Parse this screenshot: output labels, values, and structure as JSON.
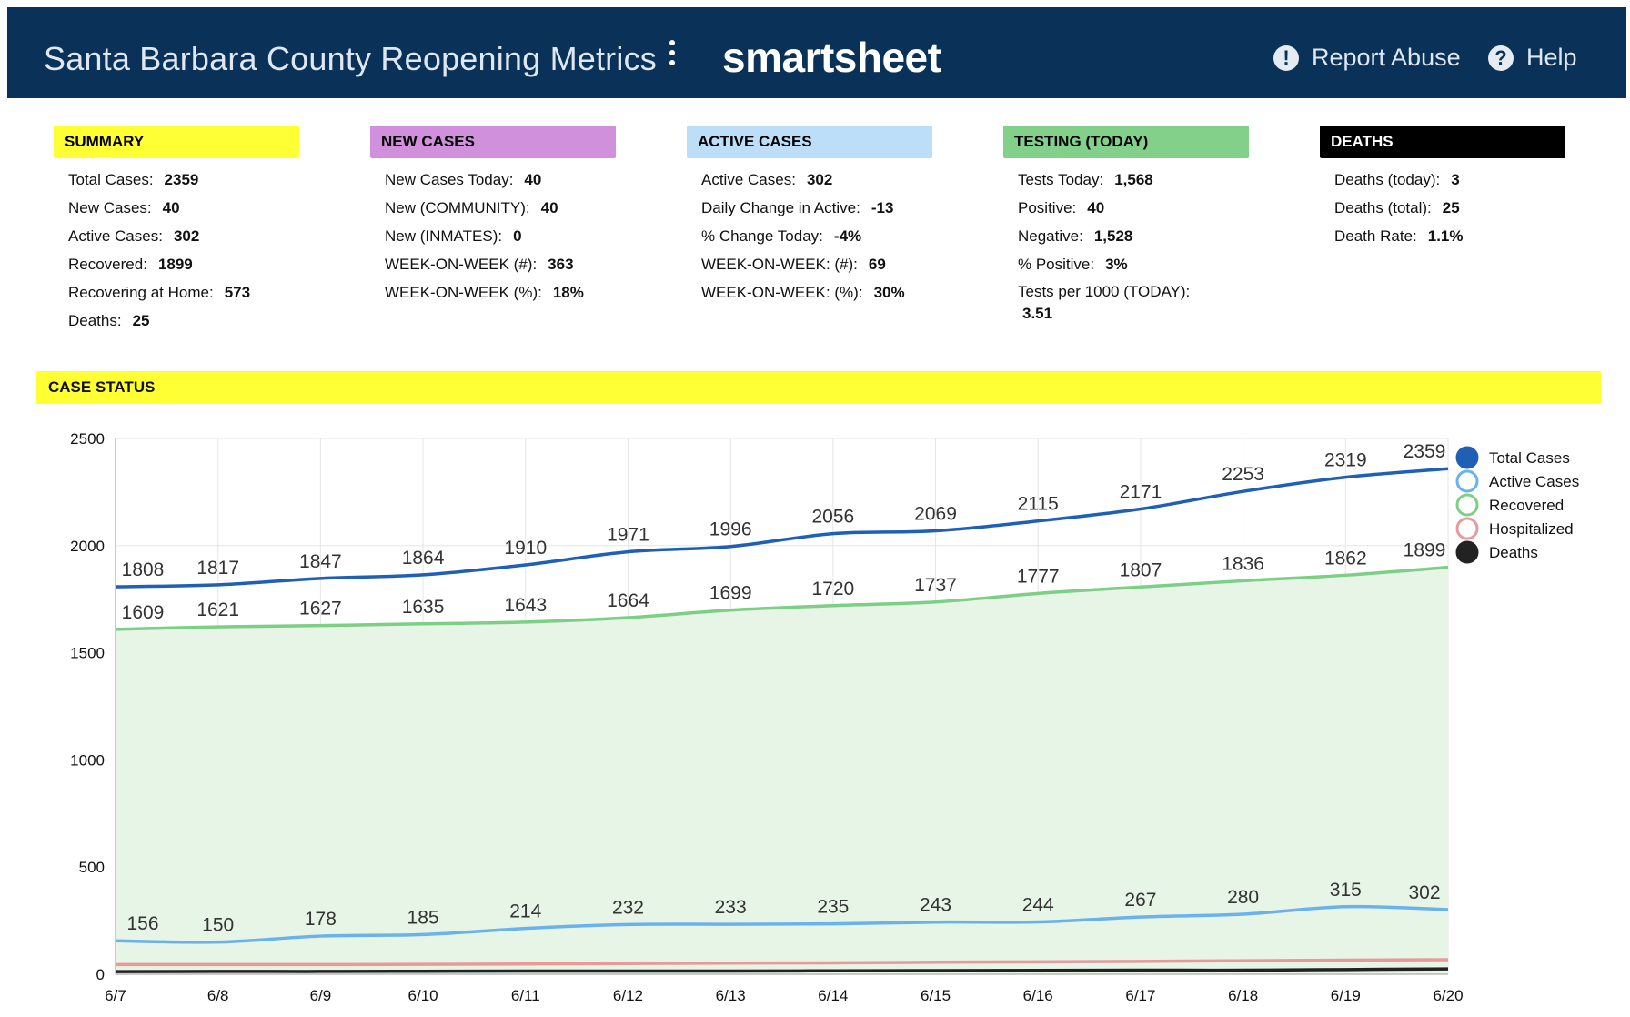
{
  "header": {
    "title": "Santa Barbara County Reopening Metrics (​",
    "brand": "smartsheet",
    "report_abuse": "Report Abuse",
    "help": "Help"
  },
  "cards": [
    {
      "key": "summary",
      "title": "SUMMARY",
      "color": "#ffff33",
      "text_color": "#000000",
      "rows": [
        {
          "label": "Total Cases:",
          "value": "2359"
        },
        {
          "label": "New Cases:",
          "value": "40"
        },
        {
          "label": "Active Cases:",
          "value": "302"
        },
        {
          "label": "Recovered:",
          "value": "1899"
        },
        {
          "label": "Recovering at Home:",
          "value": "573"
        },
        {
          "label": "Deaths:",
          "value": "25"
        }
      ]
    },
    {
      "key": "new-cases",
      "title": "NEW CASES",
      "color": "#d090dc",
      "text_color": "#000000",
      "rows": [
        {
          "label": "New Cases Today:",
          "value": "40"
        },
        {
          "label": "New (COMMUNITY):",
          "value": "40"
        },
        {
          "label": "New (INMATES):",
          "value": "0"
        },
        {
          "label": "WEEK-ON-WEEK (#):",
          "value": "363"
        },
        {
          "label": "WEEK-ON-WEEK (%):",
          "value": "18%"
        }
      ]
    },
    {
      "key": "active-cases",
      "title": "ACTIVE CASES",
      "color": "#bcdef8",
      "text_color": "#000000",
      "rows": [
        {
          "label": "Active Cases:",
          "value": "302"
        },
        {
          "label": "Daily Change in Active:",
          "value": "-13"
        },
        {
          "label": "% Change Today:",
          "value": "-4%"
        },
        {
          "label": "WEEK-ON-WEEK: (#):",
          "value": "69"
        },
        {
          "label": "WEEK-ON-WEEK: (%):",
          "value": "30%"
        }
      ]
    },
    {
      "key": "testing",
      "title": "TESTING (TODAY)",
      "color": "#82d08a",
      "text_color": "#000000",
      "rows": [
        {
          "label": "Tests Today:",
          "value": "1,568"
        },
        {
          "label": "Positive:",
          "value": "40"
        },
        {
          "label": "Negative:",
          "value": "1,528"
        },
        {
          "label": "% Positive:",
          "value": "3%"
        },
        {
          "label": "Tests per 1000 (TODAY):",
          "value": "3.51",
          "wrap": true
        }
      ]
    },
    {
      "key": "deaths",
      "title": "DEATHS",
      "color": "#000000",
      "text_color": "#ffffff",
      "rows": [
        {
          "label": "Deaths (today):",
          "value": "3"
        },
        {
          "label": "Deaths (total):",
          "value": "25"
        },
        {
          "label": "Death Rate:",
          "value": "1.1%"
        }
      ]
    }
  ],
  "case_status": {
    "title": "CASE STATUS"
  },
  "chart_data": {
    "type": "area",
    "x": [
      "6/7",
      "6/8",
      "6/9",
      "6/10",
      "6/11",
      "6/12",
      "6/13",
      "6/14",
      "6/15",
      "6/16",
      "6/17",
      "6/18",
      "6/19",
      "6/20"
    ],
    "ylim": [
      0,
      2500
    ],
    "yticks": [
      0,
      500,
      1000,
      1500,
      2000,
      2500
    ],
    "grid": true,
    "legend_position": "right",
    "series": [
      {
        "name": "Total Cases",
        "color": "#1f5fb5",
        "legend_fill": true,
        "labeled": true,
        "fill": null,
        "values": [
          1808,
          1817,
          1847,
          1864,
          1910,
          1971,
          1996,
          2056,
          2069,
          2115,
          2171,
          2253,
          2319,
          2359
        ]
      },
      {
        "name": "Active Cases",
        "color": "#6ab2ec",
        "legend_fill": false,
        "labeled": true,
        "fill": "#cfe9ef",
        "values": [
          156,
          150,
          178,
          185,
          214,
          232,
          233,
          235,
          243,
          244,
          267,
          280,
          315,
          302
        ]
      },
      {
        "name": "Recovered",
        "color": "#7dcf85",
        "legend_fill": false,
        "labeled": true,
        "fill": "#e6f5e6",
        "values": [
          1609,
          1621,
          1627,
          1635,
          1643,
          1664,
          1699,
          1720,
          1737,
          1777,
          1807,
          1836,
          1862,
          1899
        ]
      },
      {
        "name": "Hospitalized",
        "color": "#e89a9a",
        "legend_fill": false,
        "labeled": false,
        "fill": null,
        "values": [
          45,
          45,
          45,
          46,
          48,
          50,
          52,
          53,
          56,
          58,
          60,
          63,
          66,
          68
        ]
      },
      {
        "name": "Deaths",
        "color": "#222222",
        "legend_fill": true,
        "labeled": false,
        "fill": null,
        "values": [
          12,
          13,
          13,
          14,
          15,
          15,
          15,
          16,
          17,
          18,
          19,
          19,
          22,
          25
        ]
      }
    ]
  }
}
